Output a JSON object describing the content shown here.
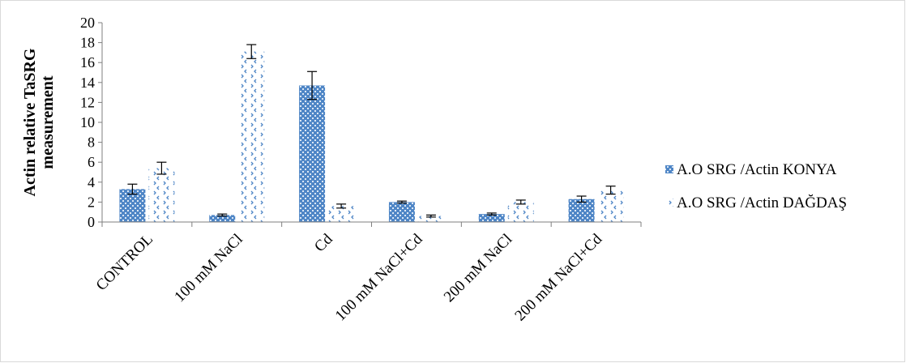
{
  "chart_data": {
    "type": "bar",
    "ylabel_line1": "Actin relative TaSRG",
    "ylabel_line2": "measurement",
    "ylim": [
      0,
      20
    ],
    "yticks": [
      "0",
      "2",
      "4",
      "6",
      "8",
      "10",
      "12",
      "14",
      "16",
      "18",
      "20"
    ],
    "categories": [
      "CONTROL",
      "100 mM NaCl",
      "Cd",
      "100 mM NaCl+Cd",
      "200 mM NaCl",
      "200 mM NaCl+Cd"
    ],
    "series": [
      {
        "name": "A.O SRG /Actin KONYA",
        "values": [
          3.3,
          0.7,
          13.7,
          2.0,
          0.8,
          2.3
        ],
        "errors": [
          0.5,
          0.1,
          1.4,
          0.1,
          0.1,
          0.3
        ],
        "color": "#4f86c6",
        "pattern": "dense-check"
      },
      {
        "name": "A.O SRG /Actin DAĞDAŞ",
        "values": [
          5.4,
          17.1,
          1.6,
          0.6,
          2.0,
          3.2
        ],
        "errors": [
          0.6,
          0.7,
          0.2,
          0.1,
          0.2,
          0.4
        ],
        "color": "#4f86c6",
        "pattern": "sparse-chevron"
      }
    ],
    "legend_position": "right",
    "grid": false
  }
}
